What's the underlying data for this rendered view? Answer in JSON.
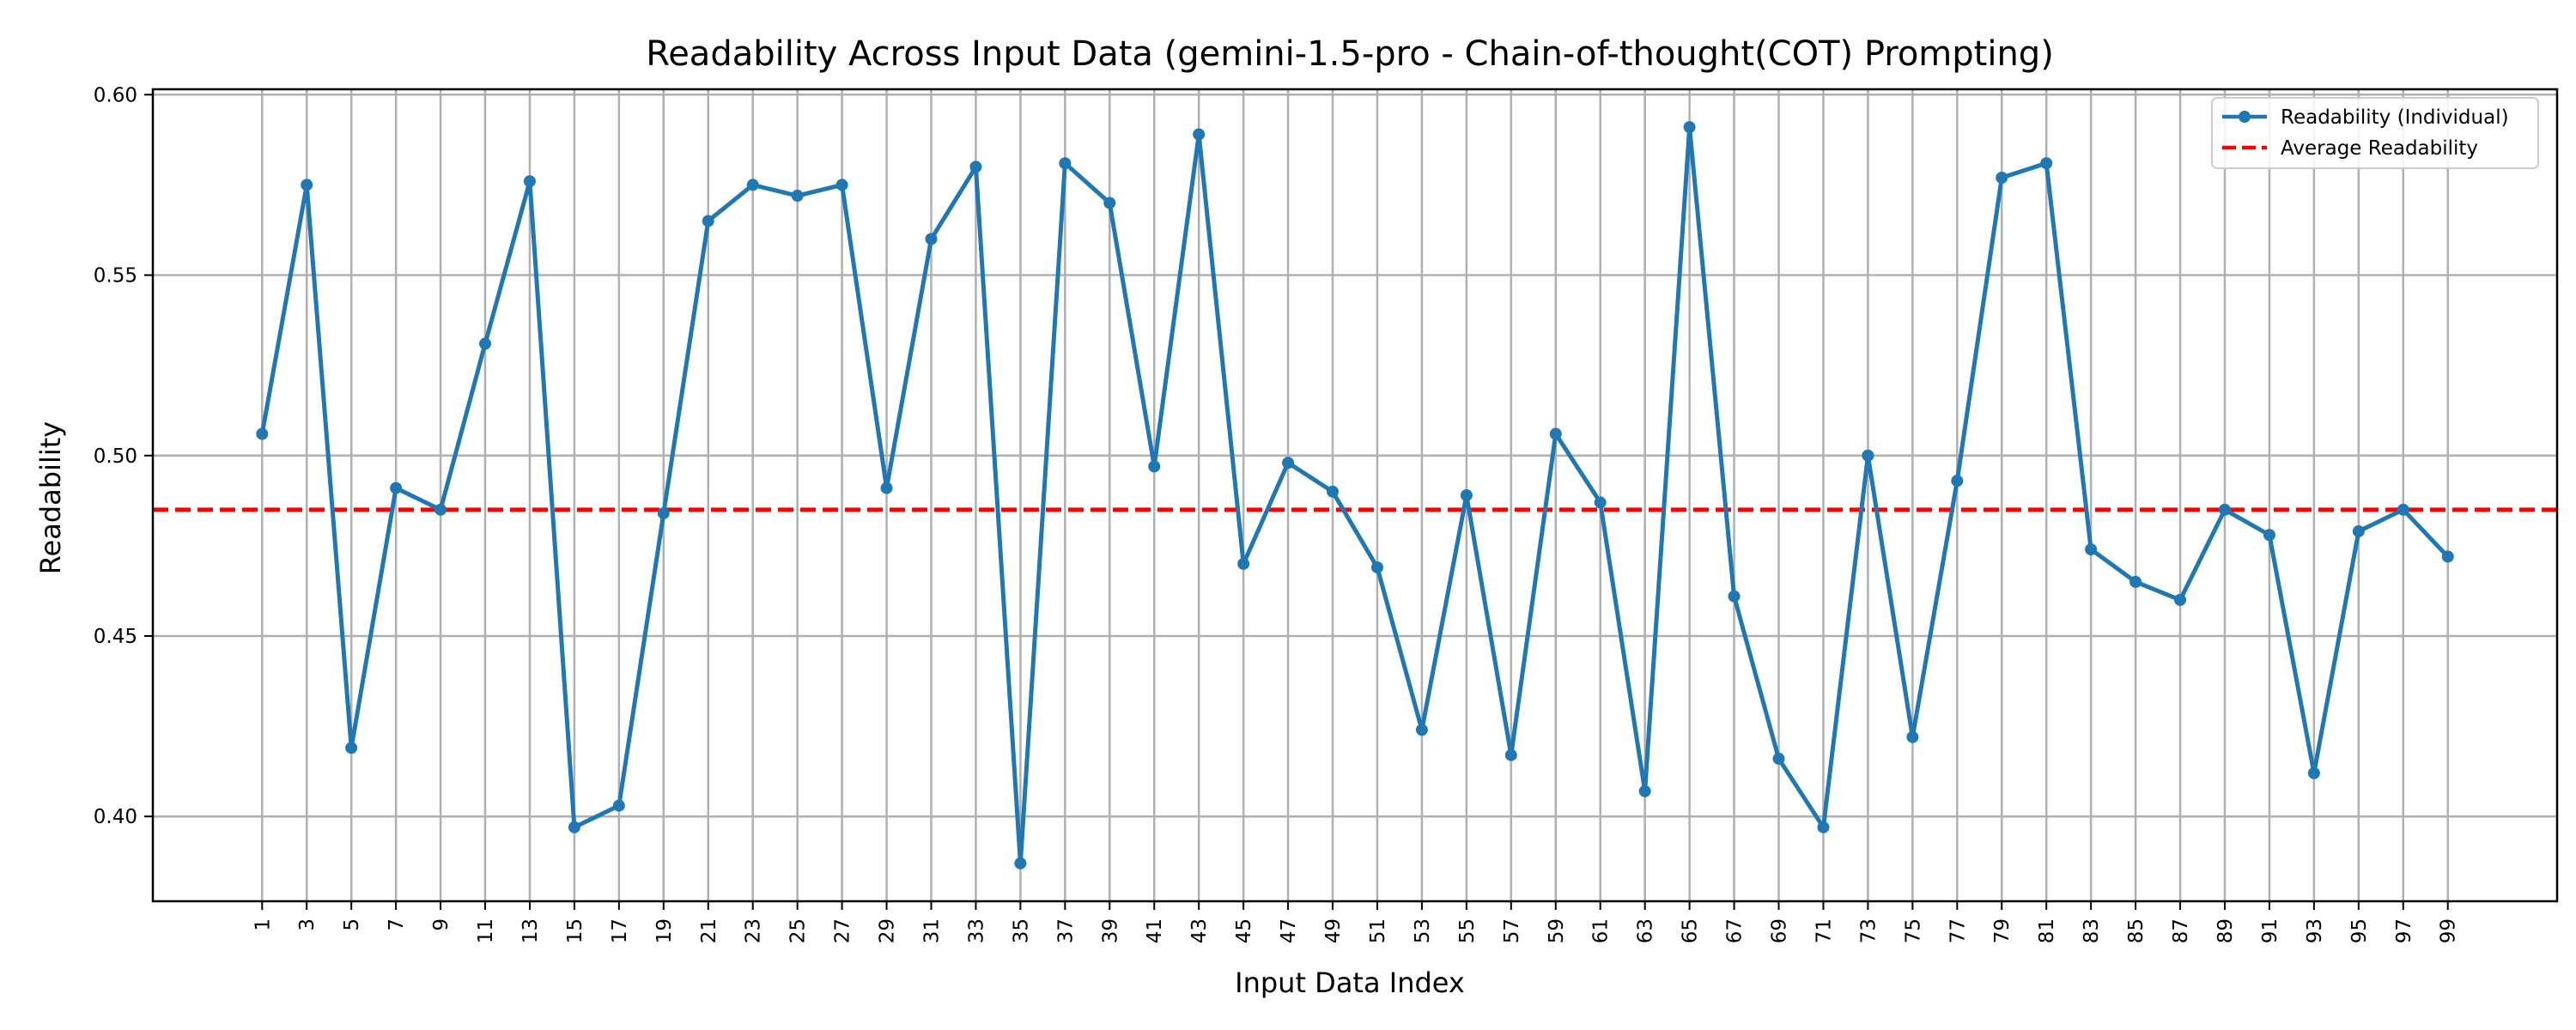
{
  "chart_data": {
    "type": "line",
    "title": "Readability Across Input Data (gemini-1.5-pro - Chain-of-thought(COT) Prompting)",
    "xlabel": "Input Data Index",
    "ylabel": "Readability",
    "x": [
      1,
      3,
      5,
      7,
      9,
      11,
      13,
      15,
      17,
      19,
      21,
      23,
      25,
      27,
      29,
      31,
      33,
      35,
      37,
      39,
      41,
      43,
      45,
      47,
      49,
      51,
      53,
      55,
      57,
      59,
      61,
      63,
      65,
      67,
      69,
      71,
      73,
      75,
      77,
      79,
      81,
      83,
      85,
      87,
      89,
      91,
      93,
      95,
      97,
      99
    ],
    "xlim": [
      -3.9,
      103.9
    ],
    "ylim": [
      0.3765,
      0.6015
    ],
    "yticks": [
      0.4,
      0.45,
      0.5,
      0.55,
      0.6
    ],
    "ytick_labels": [
      "0.40",
      "0.45",
      "0.50",
      "0.55",
      "0.60"
    ],
    "xtick_labels": [
      "1",
      "3",
      "5",
      "7",
      "9",
      "11",
      "13",
      "15",
      "17",
      "19",
      "21",
      "23",
      "25",
      "27",
      "29",
      "31",
      "33",
      "35",
      "37",
      "39",
      "41",
      "43",
      "45",
      "47",
      "49",
      "51",
      "53",
      "55",
      "57",
      "59",
      "61",
      "63",
      "65",
      "67",
      "69",
      "71",
      "73",
      "75",
      "77",
      "79",
      "81",
      "83",
      "85",
      "87",
      "89",
      "91",
      "93",
      "95",
      "97",
      "99"
    ],
    "grid": true,
    "legend_position": "top-right",
    "series": [
      {
        "name": "Readability (Individual)",
        "color": "#1f77b4",
        "style": "solid-with-markers",
        "values": [
          0.506,
          0.575,
          0.419,
          0.491,
          0.485,
          0.531,
          0.576,
          0.397,
          0.403,
          0.484,
          0.565,
          0.575,
          0.572,
          0.575,
          0.491,
          0.56,
          0.58,
          0.387,
          0.581,
          0.57,
          0.497,
          0.589,
          0.47,
          0.498,
          0.49,
          0.469,
          0.424,
          0.489,
          0.417,
          0.506,
          0.487,
          0.407,
          0.591,
          0.461,
          0.416,
          0.397,
          0.5,
          0.422,
          0.493,
          0.577,
          0.581,
          0.474,
          0.465,
          0.46,
          0.485,
          0.478,
          0.412,
          0.479,
          0.485,
          0.472
        ]
      }
    ],
    "reference_lines": [
      {
        "name": "Average Readability",
        "y": 0.485,
        "color": "#ff0000",
        "style": "dashed"
      }
    ]
  }
}
